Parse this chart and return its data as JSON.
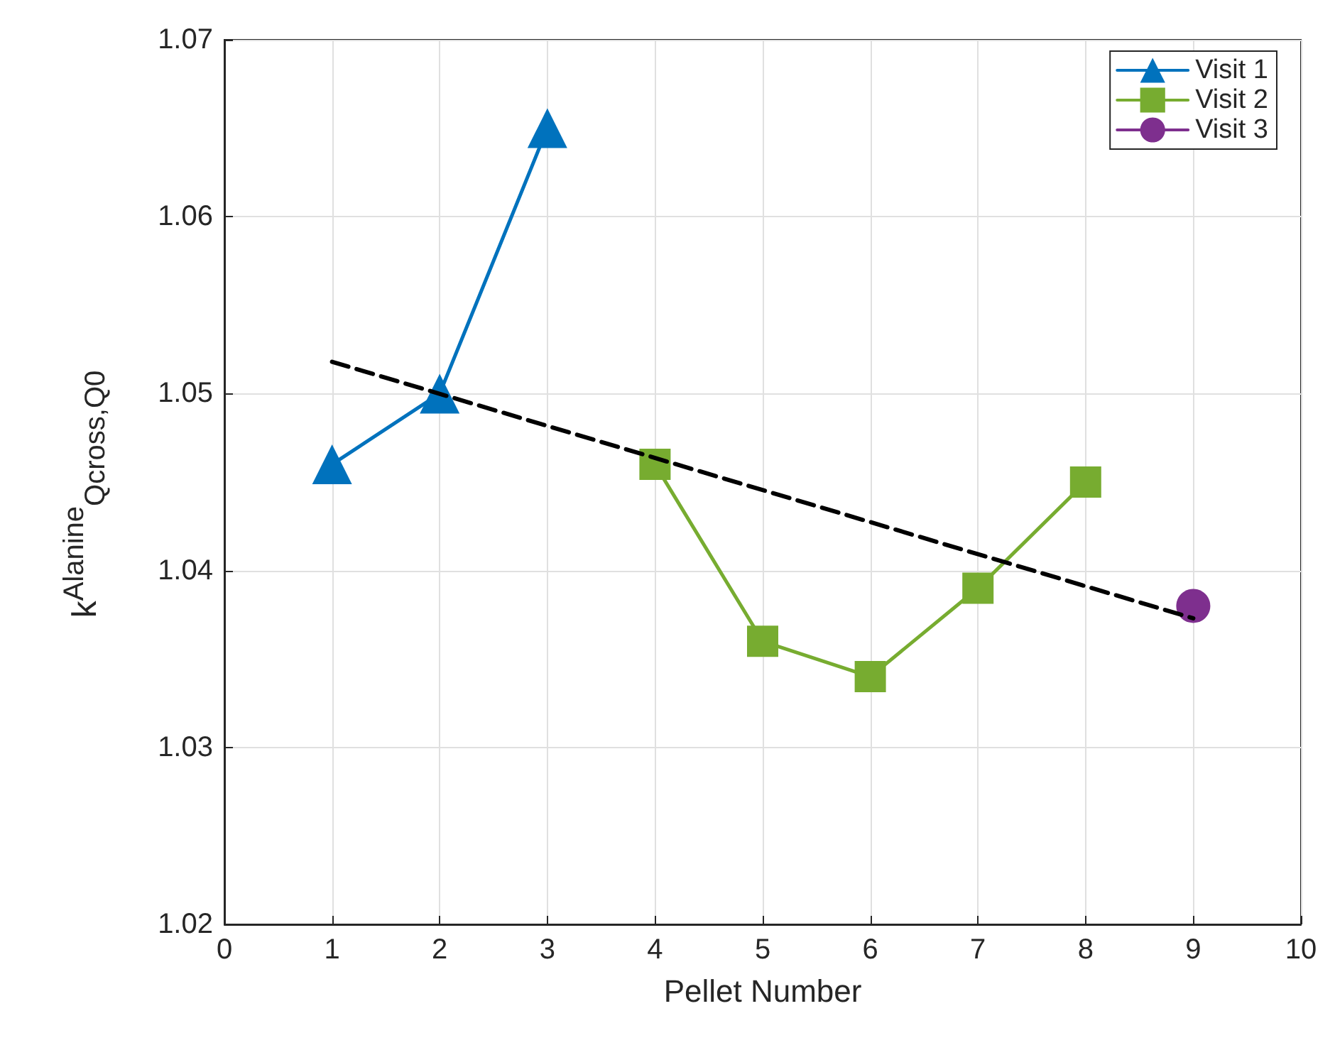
{
  "chart_data": {
    "type": "line",
    "xlabel": "Pellet Number",
    "ylabel": "k$^{Alanine}$$_{Q}$$_{cross}$$_{,Q}$$_{0}$",
    "xlim": [
      0,
      10
    ],
    "xticks": [
      0,
      1,
      2,
      3,
      4,
      5,
      6,
      7,
      8,
      9,
      10
    ],
    "ylim": [
      1.02,
      1.07
    ],
    "yticks": [
      1.02,
      1.03,
      1.04,
      1.05,
      1.06,
      1.07
    ],
    "grid": true,
    "legend": "top right",
    "series": [
      {
        "name": "Visit 1",
        "color": "#0072bd",
        "marker": "triangle",
        "x": [
          1,
          2,
          3
        ],
        "values": [
          1.046,
          1.05,
          1.065
        ]
      },
      {
        "name": "Visit 2",
        "color": "#77ac30",
        "marker": "square",
        "x": [
          4,
          5,
          6,
          7,
          8
        ],
        "values": [
          1.046,
          1.036,
          1.034,
          1.039,
          1.045
        ]
      },
      {
        "name": "Visit 3",
        "color": "#7e2f8e",
        "marker": "circle",
        "x": [
          9
        ],
        "values": [
          1.038
        ]
      },
      {
        "type": "line",
        "color": "#000000",
        "marker": "none",
        "line_style": "dashed",
        "x": [
          1,
          9
        ],
        "values": [
          1.0518,
          1.0373
        ]
      }
    ]
  }
}
